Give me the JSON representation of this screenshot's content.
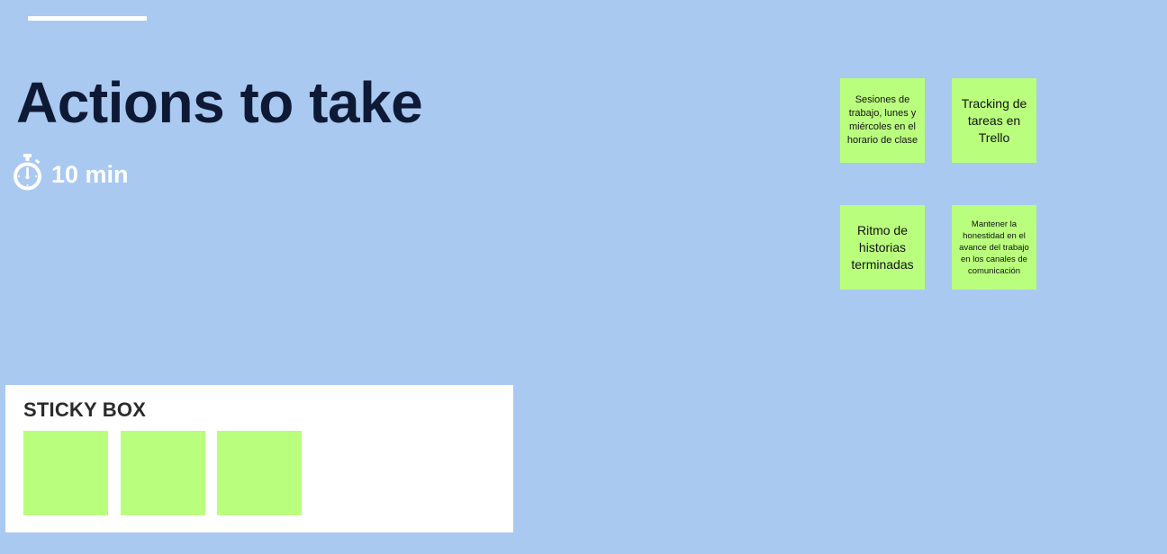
{
  "board": {
    "title": "Actions to take",
    "timer_label": "10 min",
    "timer_icon": "stopwatch-icon"
  },
  "stickies": [
    {
      "text": "Sesiones de trabajo, lunes y miércoles en el horario de clase",
      "color": "#bafe7e"
    },
    {
      "text": "Tracking de tareas en Trello",
      "color": "#bafe7e"
    },
    {
      "text": "Ritmo de historias terminadas",
      "color": "#bafe7e"
    },
    {
      "text": "Mantener la honestidad en el avance del trabajo en los canales de comunicación",
      "color": "#bafe7e"
    }
  ],
  "sticky_box": {
    "title": "STICKY BOX",
    "empty_notes": 3,
    "note_color": "#bafe7e"
  },
  "colors": {
    "background": "#a9c9f1",
    "title": "#0e1a35",
    "sticky": "#bafe7e",
    "box": "#ffffff"
  }
}
